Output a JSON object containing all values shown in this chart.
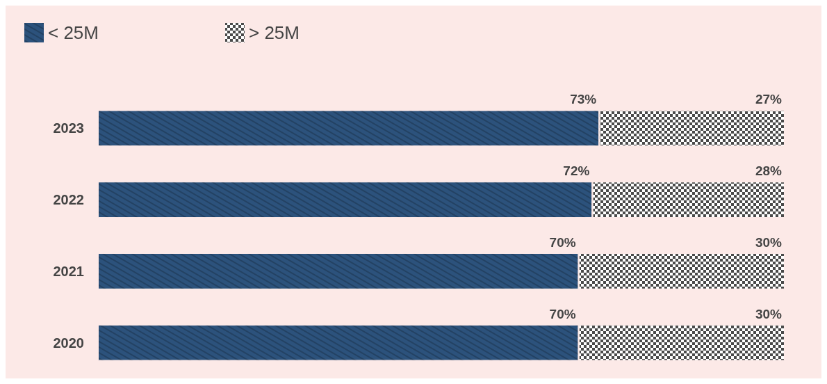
{
  "chart_data": {
    "type": "bar",
    "orientation": "horizontal",
    "stacked": true,
    "legend": "top left",
    "categories": [
      "2023",
      "2022",
      "2021",
      "2020"
    ],
    "series": [
      {
        "name": "< 25M",
        "color": "#2c527c",
        "values": [
          73,
          72,
          70,
          70
        ],
        "value_labels": [
          "73%",
          "72%",
          "70%",
          "70%"
        ]
      },
      {
        "name": "> 25M",
        "color": "#4a4a4a",
        "values": [
          27,
          28,
          30,
          30
        ],
        "value_labels": [
          "27%",
          "28%",
          "30%",
          "30%"
        ]
      }
    ]
  }
}
